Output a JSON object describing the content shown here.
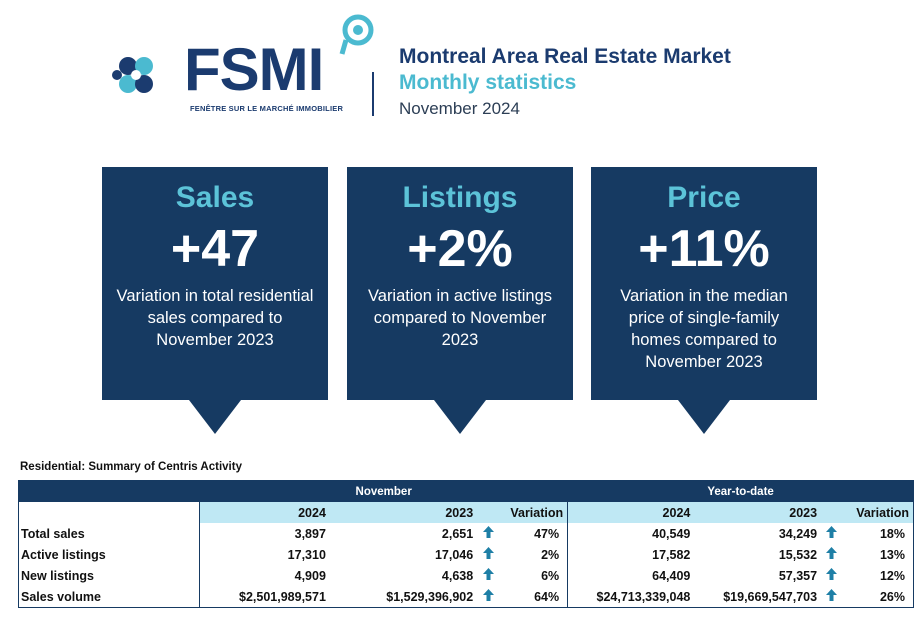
{
  "header": {
    "brand": "FSMI",
    "brand_tagline": "FENÊTRE SUR LE MARCHÉ IMMOBILIER",
    "title": "Montreal Area Real Estate Market",
    "subtitle": "Monthly statistics",
    "period": "November 2024",
    "colors": {
      "navy": "#1b3b6f",
      "teal": "#4bbad0",
      "card": "#163a62",
      "card_title": "#5cc3d8"
    }
  },
  "cards": [
    {
      "title": "Sales",
      "value": "+47",
      "description": "Variation in total residential sales compared to November 2023"
    },
    {
      "title": "Listings",
      "value": "+2%",
      "description": "Variation in active listings compared to November 2023"
    },
    {
      "title": "Price",
      "value": "+11%",
      "description": "Variation in the median price of single-family homes compared to November 2023"
    }
  ],
  "chart_data": {
    "type": "table",
    "title": "Residential: Summary of Centris Activity",
    "groups": [
      "November",
      "Year-to-date"
    ],
    "columns": [
      "2024",
      "2023",
      "Variation",
      "2024",
      "2023",
      "Variation"
    ],
    "rows": [
      {
        "label": "Total sales",
        "nov_2024": "3,897",
        "nov_2023": "2,651",
        "nov_var": "47%",
        "ytd_2024": "40,549",
        "ytd_2023": "34,249",
        "ytd_var": "18%"
      },
      {
        "label": "Active listings",
        "nov_2024": "17,310",
        "nov_2023": "17,046",
        "nov_var": "2%",
        "ytd_2024": "17,582",
        "ytd_2023": "15,532",
        "ytd_var": "13%"
      },
      {
        "label": "New listings",
        "nov_2024": "4,909",
        "nov_2023": "4,638",
        "nov_var": "6%",
        "ytd_2024": "64,409",
        "ytd_2023": "57,357",
        "ytd_var": "12%"
      },
      {
        "label": "Sales volume",
        "nov_2024": "$2,501,989,571",
        "nov_2023": "$1,529,396,902",
        "nov_var": "64%",
        "ytd_2024": "$24,713,339,048",
        "ytd_2023": "$19,669,547,703",
        "ytd_var": "26%"
      }
    ],
    "variation_arrow": "up-arrow-icon"
  }
}
